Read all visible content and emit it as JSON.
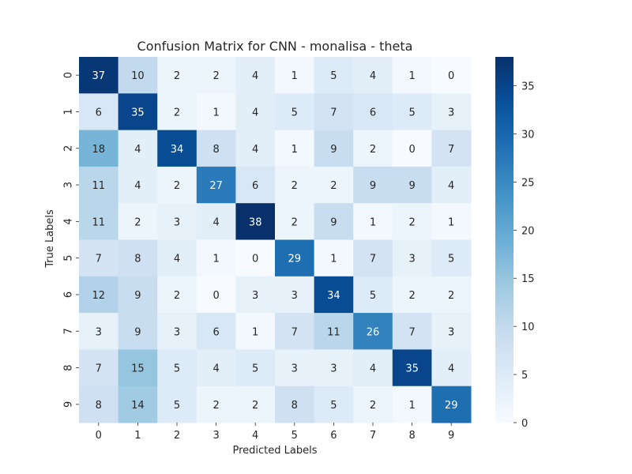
{
  "chart_data": {
    "type": "heatmap",
    "title": "Confusion Matrix for CNN - monalisa - theta",
    "xlabel": "Predicted Labels",
    "ylabel": "True Labels",
    "x_categories": [
      "0",
      "1",
      "2",
      "3",
      "4",
      "5",
      "6",
      "7",
      "8",
      "9"
    ],
    "y_categories": [
      "0",
      "1",
      "2",
      "3",
      "4",
      "5",
      "6",
      "7",
      "8",
      "9"
    ],
    "values": [
      [
        37,
        10,
        2,
        2,
        4,
        1,
        5,
        4,
        1,
        0
      ],
      [
        6,
        35,
        2,
        1,
        4,
        5,
        7,
        6,
        5,
        3
      ],
      [
        18,
        4,
        34,
        8,
        4,
        1,
        9,
        2,
        0,
        7
      ],
      [
        11,
        4,
        2,
        27,
        6,
        2,
        2,
        9,
        9,
        4
      ],
      [
        11,
        2,
        3,
        4,
        38,
        2,
        9,
        1,
        2,
        1
      ],
      [
        7,
        8,
        4,
        1,
        0,
        29,
        1,
        7,
        3,
        5
      ],
      [
        12,
        9,
        2,
        0,
        3,
        3,
        34,
        5,
        2,
        2
      ],
      [
        3,
        9,
        3,
        6,
        1,
        7,
        11,
        26,
        7,
        3
      ],
      [
        7,
        15,
        5,
        4,
        5,
        3,
        3,
        4,
        35,
        4
      ],
      [
        8,
        14,
        5,
        2,
        2,
        8,
        5,
        2,
        1,
        29
      ]
    ],
    "colorbar": {
      "min": 0,
      "max": 38,
      "ticks": [
        "0",
        "5",
        "10",
        "15",
        "20",
        "25",
        "30",
        "35"
      ],
      "colormap": "Blues",
      "low_color": "#f7fbff",
      "high_color": "#08306b"
    }
  }
}
